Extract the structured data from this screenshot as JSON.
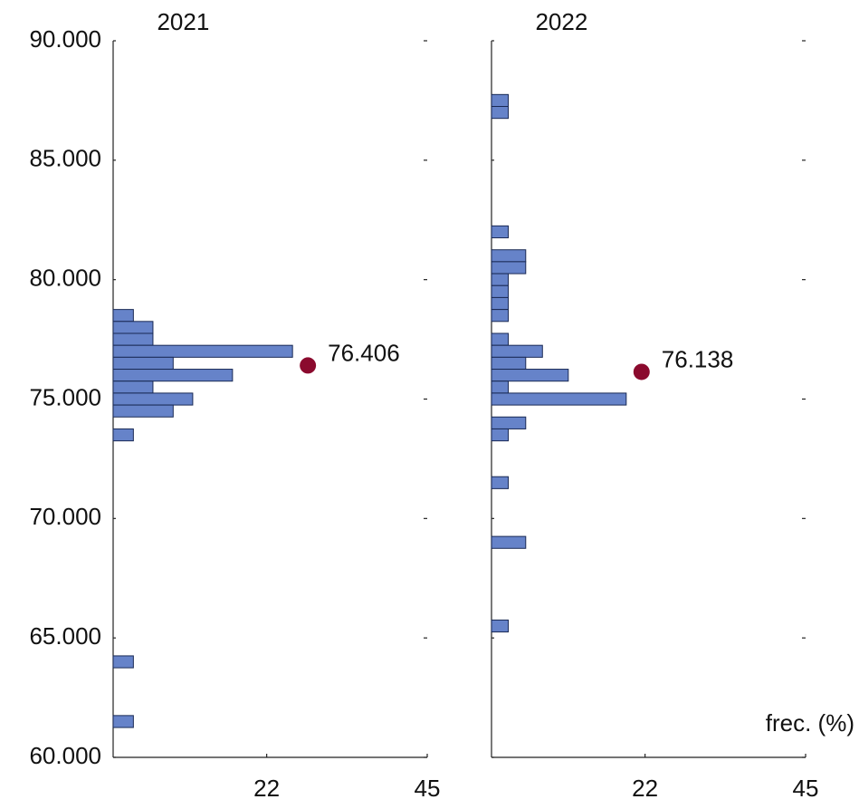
{
  "chart_data": [
    {
      "type": "bar",
      "orientation": "horizontal",
      "title": "2021",
      "y": [
        78500,
        78000,
        77500,
        77000,
        76500,
        76000,
        75500,
        75000,
        74500,
        73500,
        64000,
        61500
      ],
      "values": [
        2.9,
        5.7,
        5.7,
        25.7,
        8.6,
        17.1,
        5.7,
        11.4,
        8.6,
        2.9,
        2.9,
        2.9
      ],
      "color": "#6683c9",
      "mean": {
        "value": 76406,
        "label": "76.406",
        "x": 27.9
      },
      "mean_color": "#8b0a2e",
      "xlim": [
        0,
        45
      ],
      "xticks": [
        22,
        45
      ],
      "ylim": [
        60000,
        90000
      ],
      "yticks": [
        {
          "value": 60000,
          "label": "60.000"
        },
        {
          "value": 65000,
          "label": "65.000"
        },
        {
          "value": 70000,
          "label": "70.000"
        },
        {
          "value": 75000,
          "label": "75.000"
        },
        {
          "value": 80000,
          "label": "80.000"
        },
        {
          "value": 85000,
          "label": "85.000"
        },
        {
          "value": 90000,
          "label": "90.000"
        }
      ]
    },
    {
      "type": "bar",
      "orientation": "horizontal",
      "title": "2022",
      "xlabel": "frec. (%)",
      "y": [
        87500,
        87000,
        82000,
        81000,
        80500,
        80000,
        79500,
        79000,
        78500,
        77500,
        77000,
        76500,
        76000,
        75500,
        75000,
        74000,
        73500,
        71500,
        69000,
        65500
      ],
      "values": [
        2.4,
        2.4,
        2.4,
        4.9,
        4.9,
        2.4,
        2.4,
        2.4,
        2.4,
        2.4,
        7.3,
        4.9,
        11.0,
        2.4,
        19.3,
        4.9,
        2.4,
        2.4,
        4.9,
        2.4
      ],
      "color": "#6683c9",
      "mean": {
        "value": 76138,
        "label": "76.138",
        "x": 21.5
      },
      "mean_color": "#8b0a2e",
      "xlim": [
        0,
        45
      ],
      "xticks": [
        22,
        45
      ],
      "ylim": [
        60000,
        90000
      ],
      "yticks": [
        60000,
        65000,
        70000,
        75000,
        80000,
        85000,
        90000
      ]
    }
  ]
}
